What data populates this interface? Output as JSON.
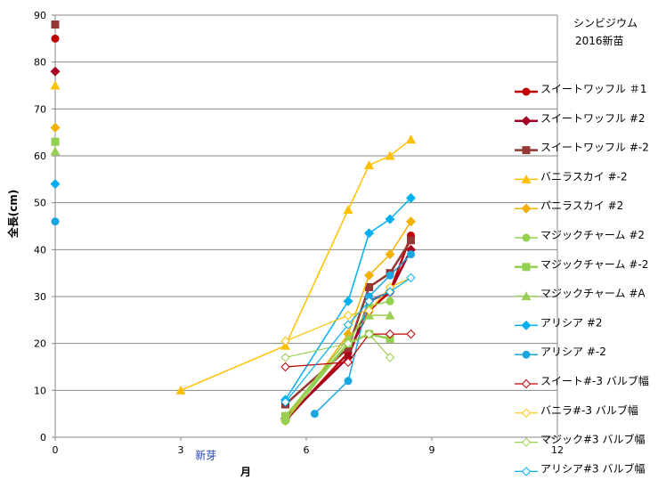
{
  "chart_data": {
    "type": "scatter",
    "title_lines": [
      "シンビジウム",
      "2016新苗"
    ],
    "xlabel": "月",
    "ylabel": "全長(cm)",
    "xlim": [
      0,
      12
    ],
    "ylim": [
      0,
      90
    ],
    "xticks": [
      0,
      3,
      6,
      9,
      12
    ],
    "yticks": [
      0,
      10,
      20,
      30,
      40,
      50,
      60,
      70,
      80,
      90
    ],
    "grid": "horizontal",
    "legend_position": "right",
    "annotations": [
      {
        "text": "新芽",
        "x": 3.6,
        "y": -1.6
      }
    ],
    "series": [
      {
        "name": "スイートワッフル ＃1",
        "color": "#c00000",
        "marker": "circle",
        "width": 2.5,
        "initial": [
          [
            0,
            85
          ]
        ],
        "points": [
          [
            5.5,
            3.5
          ],
          [
            7.0,
            18
          ],
          [
            7.5,
            27
          ],
          [
            8.0,
            31
          ],
          [
            8.5,
            43
          ]
        ]
      },
      {
        "name": "スイートワッフル #2",
        "color": "#a50021",
        "marker": "diamond",
        "width": 2.5,
        "initial": [
          [
            0,
            78
          ]
        ],
        "points": [
          [
            5.5,
            4
          ],
          [
            7.0,
            17
          ],
          [
            7.5,
            29
          ],
          [
            8.0,
            31
          ],
          [
            8.5,
            40
          ]
        ]
      },
      {
        "name": "スイートワッフル #-2",
        "color": "#953735",
        "marker": "square",
        "width": 2.5,
        "initial": [
          [
            0,
            88
          ]
        ],
        "points": [
          [
            5.5,
            7
          ],
          [
            7.0,
            19
          ],
          [
            7.5,
            32
          ],
          [
            8.0,
            35
          ],
          [
            8.5,
            42
          ]
        ]
      },
      {
        "name": "バニラスカイ #-2",
        "color": "#ffc000",
        "marker": "triangle",
        "width": 1.5,
        "initial": [
          [
            0,
            75
          ]
        ],
        "points": [
          [
            3.0,
            10
          ],
          [
            5.5,
            19.5
          ],
          [
            7.0,
            48.5
          ],
          [
            7.5,
            58
          ],
          [
            8.0,
            60
          ],
          [
            8.5,
            63.5
          ]
        ]
      },
      {
        "name": "バニラスカイ #2",
        "color": "#f4b000",
        "marker": "diamond",
        "width": 1.5,
        "initial": [
          [
            0,
            66
          ]
        ],
        "points": [
          [
            5.5,
            3.5
          ],
          [
            7.0,
            22
          ],
          [
            7.5,
            34.5
          ],
          [
            8.0,
            39
          ],
          [
            8.5,
            46
          ]
        ]
      },
      {
        "name": "マジックチャーム #2",
        "color": "#92d050",
        "marker": "circle",
        "width": 1.5,
        "initial": [],
        "points": [
          [
            5.5,
            3.5
          ],
          [
            7.0,
            20
          ],
          [
            7.5,
            28
          ],
          [
            8.0,
            29
          ]
        ]
      },
      {
        "name": "マジックチャーム #-2",
        "color": "#92d050",
        "marker": "square",
        "width": 2.5,
        "initial": [
          [
            0,
            63
          ]
        ],
        "points": [
          [
            5.5,
            4.5
          ],
          [
            7.0,
            20
          ],
          [
            7.5,
            22
          ],
          [
            8.0,
            21
          ]
        ]
      },
      {
        "name": "マジックチャーム #A",
        "color": "#9bcf53",
        "marker": "triangle",
        "width": 1.5,
        "initial": [
          [
            0,
            61
          ]
        ],
        "points": [
          [
            5.5,
            4.5
          ],
          [
            7.0,
            21
          ],
          [
            7.5,
            26
          ],
          [
            8.0,
            26
          ]
        ]
      },
      {
        "name": "アリシア #2",
        "color": "#00b0f0",
        "marker": "diamond",
        "width": 1.5,
        "initial": [
          [
            0,
            54
          ]
        ],
        "points": [
          [
            5.5,
            8
          ],
          [
            7.0,
            29
          ],
          [
            7.5,
            43.5
          ],
          [
            8.0,
            46.5
          ],
          [
            8.5,
            51
          ]
        ]
      },
      {
        "name": "アリシア #-2",
        "color": "#1ba6e0",
        "marker": "circle",
        "width": 1.5,
        "initial": [
          [
            0,
            46
          ]
        ],
        "points": [
          [
            6.2,
            5
          ],
          [
            7.0,
            12
          ],
          [
            7.5,
            30
          ],
          [
            8.0,
            34.5
          ],
          [
            8.5,
            39
          ]
        ]
      },
      {
        "name": "スイート#-3 バルブ幅",
        "color": "#c00000",
        "marker": "hollow-diamond",
        "width": 1.2,
        "initial": [],
        "points": [
          [
            5.5,
            15
          ],
          [
            7.0,
            16
          ],
          [
            7.5,
            22
          ],
          [
            8.0,
            22
          ],
          [
            8.5,
            22
          ]
        ]
      },
      {
        "name": "バニラ#-3 バルブ幅",
        "color": "#ffc000",
        "marker": "hollow-diamond",
        "width": 1.2,
        "initial": [],
        "points": [
          [
            5.5,
            20.5
          ],
          [
            7.0,
            26
          ],
          [
            7.5,
            27
          ],
          [
            8.0,
            32
          ],
          [
            8.5,
            34
          ]
        ]
      },
      {
        "name": "マジック#3 バルブ幅",
        "color": "#9bcf53",
        "marker": "hollow-diamond",
        "width": 1.2,
        "initial": [],
        "points": [
          [
            5.5,
            17
          ],
          [
            7.0,
            20
          ],
          [
            7.5,
            22
          ],
          [
            8.0,
            17
          ]
        ]
      },
      {
        "name": "アリシア#3 バルブ幅",
        "color": "#00b0f0",
        "marker": "hollow-diamond",
        "width": 1.2,
        "initial": [],
        "points": [
          [
            5.5,
            7.5
          ],
          [
            7.0,
            24
          ],
          [
            7.5,
            29
          ],
          [
            8.0,
            31
          ],
          [
            8.5,
            34
          ]
        ]
      }
    ]
  }
}
